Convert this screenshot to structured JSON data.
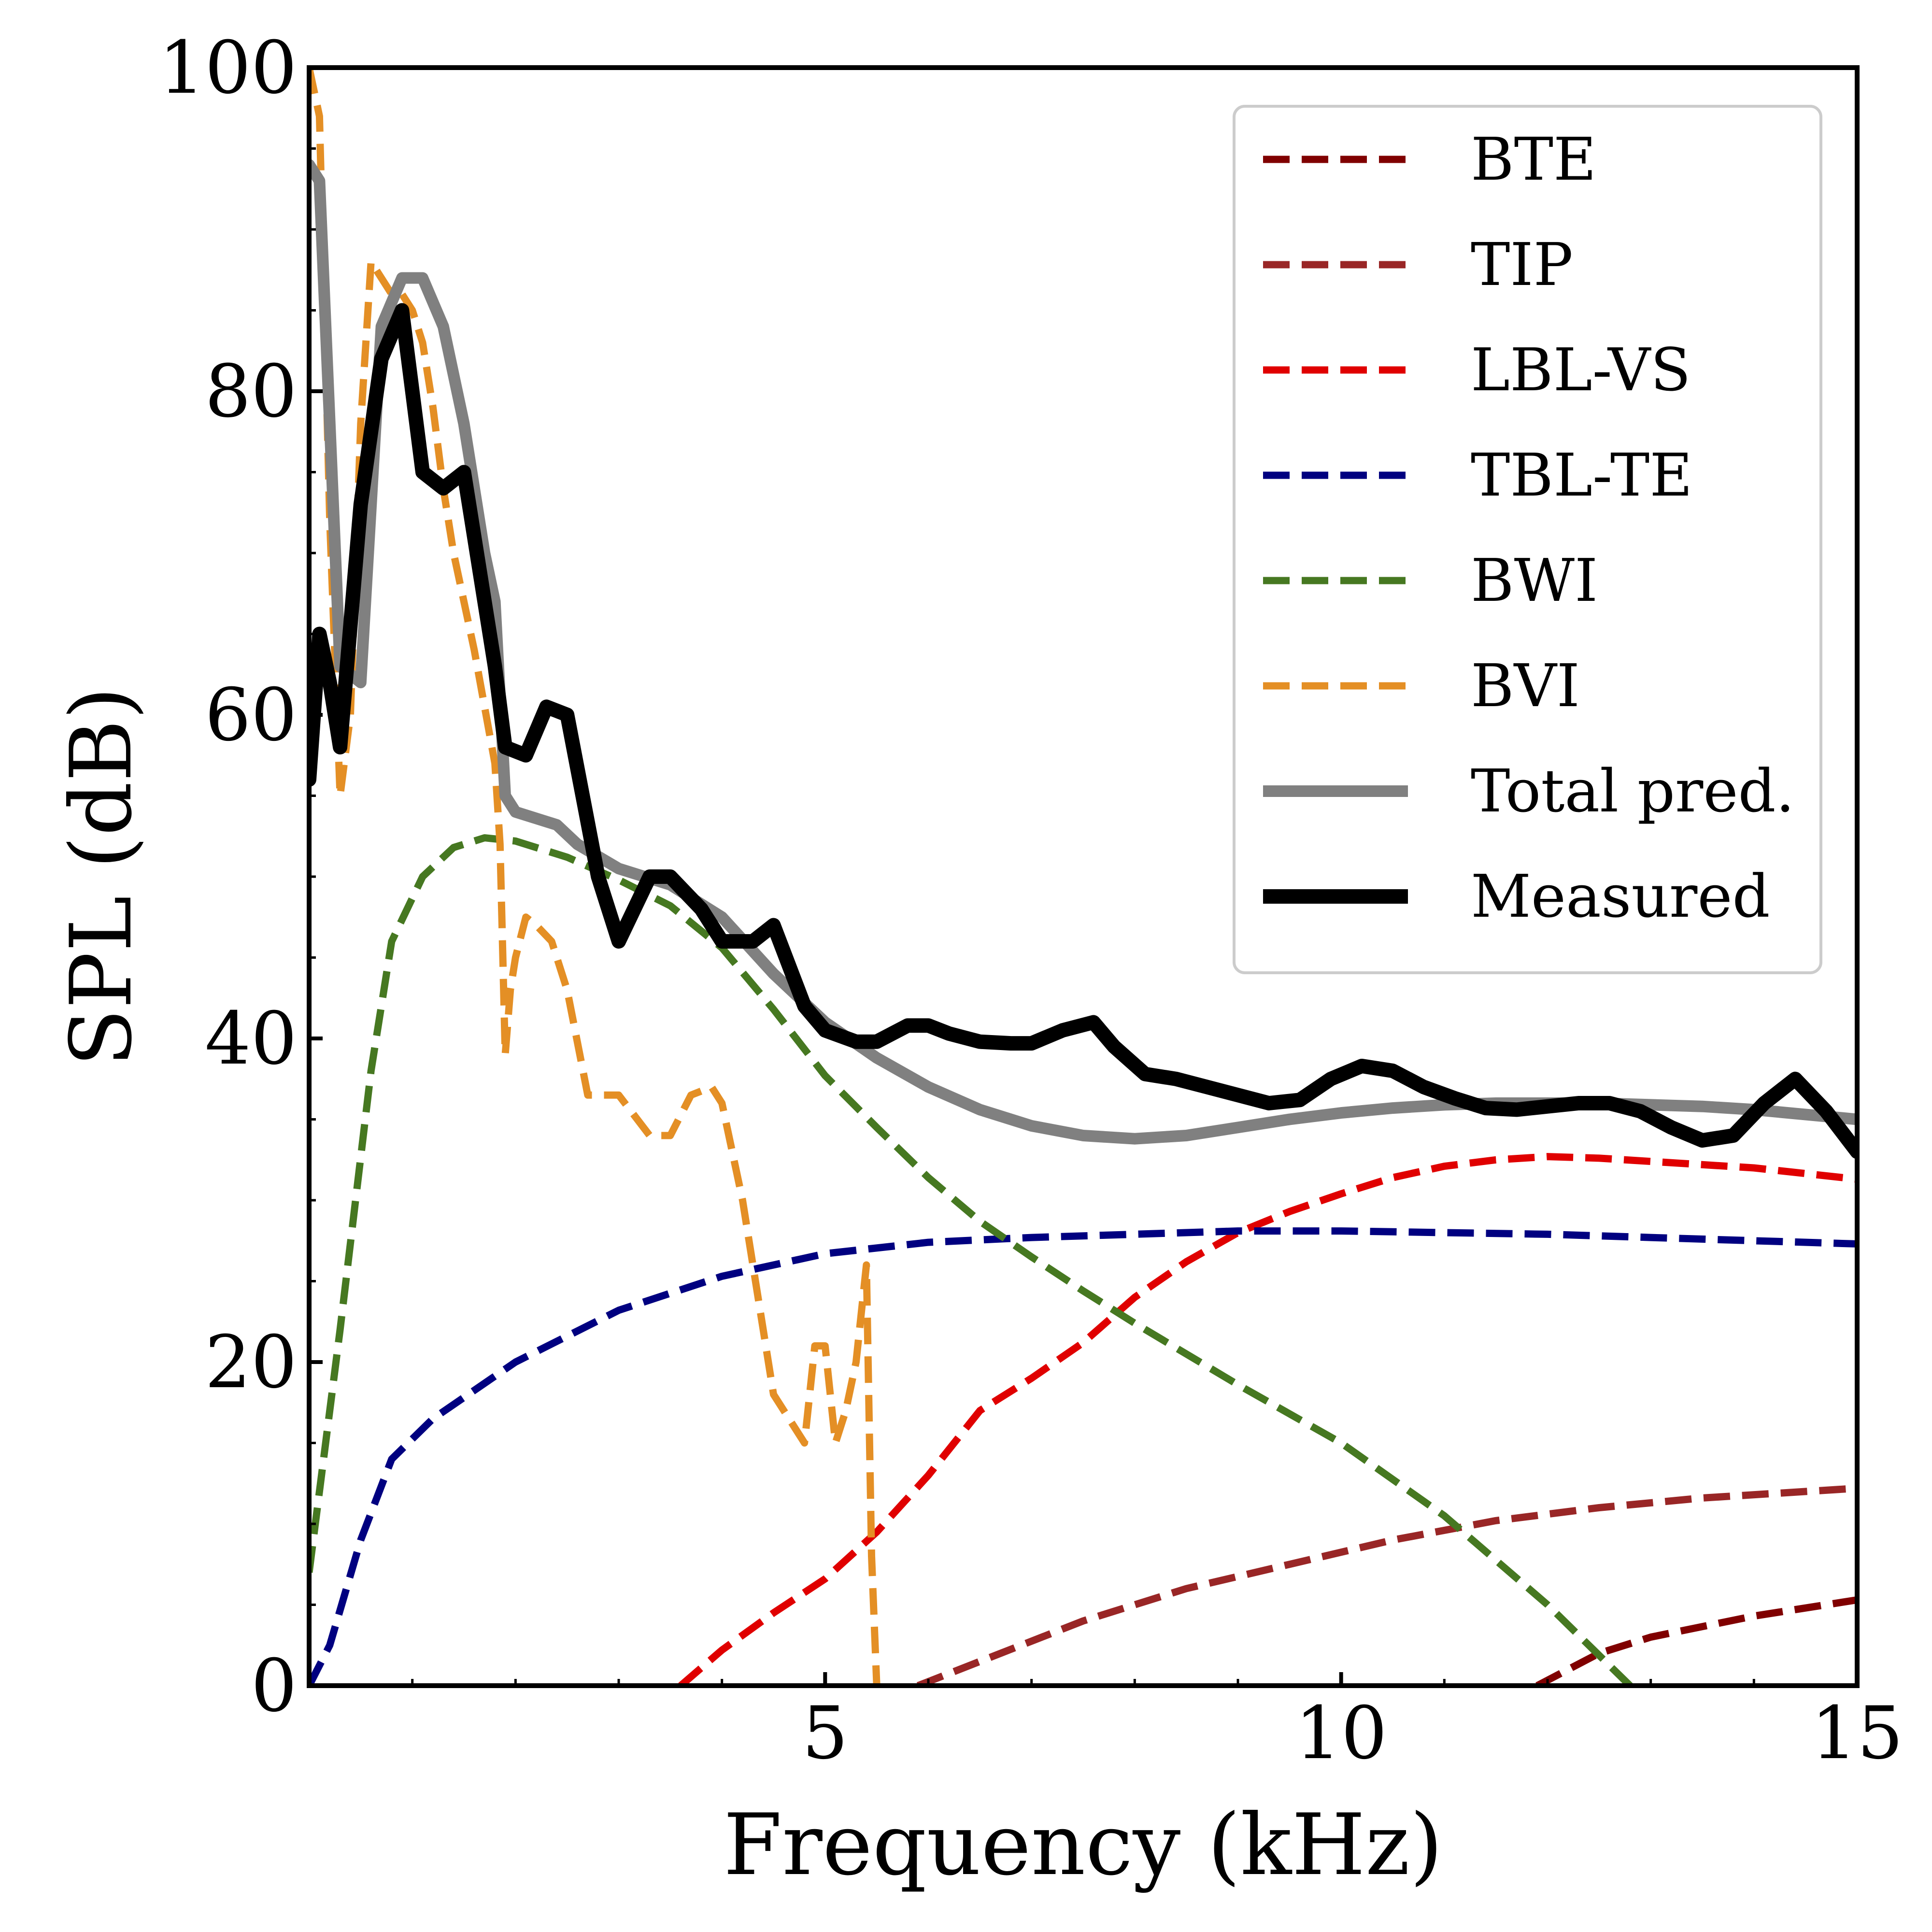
{
  "chart_data": {
    "type": "line",
    "xlabel": "Frequency (kHz)",
    "ylabel": "SPL (dB)",
    "xlim": [
      0,
      15
    ],
    "ylim": [
      0,
      100
    ],
    "xticks": [
      {
        "value": 5,
        "label": "5"
      },
      {
        "value": 10,
        "label": "10"
      },
      {
        "value": 15,
        "label": "15"
      }
    ],
    "yticks": [
      {
        "value": 0,
        "label": "0"
      },
      {
        "value": 20,
        "label": "20"
      },
      {
        "value": 40,
        "label": "40"
      },
      {
        "value": 60,
        "label": "60"
      },
      {
        "value": 80,
        "label": "80"
      },
      {
        "value": 100,
        "label": "100"
      }
    ],
    "legend_position": "top-right",
    "grid": false,
    "series": [
      {
        "name": "BTE",
        "style": "dashed",
        "color": "#800000",
        "width": 15,
        "points": [
          [
            11.9,
            0
          ],
          [
            12.5,
            2
          ],
          [
            13,
            3
          ],
          [
            14,
            4.3
          ],
          [
            15,
            5.3
          ]
        ]
      },
      {
        "name": "TIP",
        "style": "dashed",
        "color": "#992626",
        "width": 15,
        "points": [
          [
            5.9,
            0
          ],
          [
            6.5,
            1.5
          ],
          [
            7.5,
            4
          ],
          [
            8.5,
            6
          ],
          [
            9.5,
            7.5
          ],
          [
            10.5,
            9
          ],
          [
            11.5,
            10.2
          ],
          [
            12.5,
            11
          ],
          [
            13.5,
            11.6
          ],
          [
            15,
            12.2
          ]
        ]
      },
      {
        "name": "LBL-VS",
        "style": "dashed",
        "color": "#e00000",
        "width": 15,
        "points": [
          [
            3.6,
            0
          ],
          [
            4,
            2.2
          ],
          [
            4.5,
            4.5
          ],
          [
            5,
            6.6
          ],
          [
            5.5,
            9.5
          ],
          [
            6,
            13
          ],
          [
            6.5,
            17
          ],
          [
            7,
            19
          ],
          [
            7.5,
            21.2
          ],
          [
            8,
            24
          ],
          [
            8.5,
            26.2
          ],
          [
            9,
            28
          ],
          [
            9.5,
            29.3
          ],
          [
            10,
            30.4
          ],
          [
            10.5,
            31.4
          ],
          [
            11,
            32.1
          ],
          [
            11.5,
            32.5
          ],
          [
            12,
            32.7
          ],
          [
            12.5,
            32.6
          ],
          [
            13,
            32.4
          ],
          [
            14,
            32
          ],
          [
            15,
            31.3
          ]
        ]
      },
      {
        "name": "TBL-TE",
        "style": "dashed",
        "color": "#000080",
        "width": 15,
        "points": [
          [
            0,
            0
          ],
          [
            0.2,
            2.5
          ],
          [
            0.5,
            9
          ],
          [
            0.8,
            14
          ],
          [
            1.2,
            16.5
          ],
          [
            2,
            20
          ],
          [
            3,
            23.2
          ],
          [
            4,
            25.3
          ],
          [
            5,
            26.7
          ],
          [
            6,
            27.4
          ],
          [
            7,
            27.7
          ],
          [
            8,
            27.9
          ],
          [
            9,
            28.1
          ],
          [
            10,
            28.1
          ],
          [
            11,
            28
          ],
          [
            12,
            27.9
          ],
          [
            13,
            27.7
          ],
          [
            14,
            27.5
          ],
          [
            15,
            27.3
          ]
        ]
      },
      {
        "name": "BWI",
        "style": "dashed",
        "color": "#467821",
        "width": 15,
        "points": [
          [
            0,
            7
          ],
          [
            0.3,
            22
          ],
          [
            0.6,
            38
          ],
          [
            0.8,
            46
          ],
          [
            1.1,
            50
          ],
          [
            1.4,
            51.8
          ],
          [
            1.7,
            52.4
          ],
          [
            2,
            52.2
          ],
          [
            2.5,
            51.2
          ],
          [
            3,
            49.8
          ],
          [
            3.5,
            48.2
          ],
          [
            4,
            45.6
          ],
          [
            4.5,
            41.8
          ],
          [
            5,
            37.7
          ],
          [
            5.5,
            34.5
          ],
          [
            6,
            31.4
          ],
          [
            6.5,
            28.7
          ],
          [
            7,
            26.5
          ],
          [
            7.5,
            24.4
          ],
          [
            8,
            22.4
          ],
          [
            9,
            18.6
          ],
          [
            10,
            15
          ],
          [
            11,
            10.5
          ],
          [
            12,
            5
          ],
          [
            12.8,
            0
          ]
        ]
      },
      {
        "name": "BVI",
        "style": "dashed",
        "color": "#e48f25",
        "width": 15,
        "points": [
          [
            0,
            100
          ],
          [
            0.1,
            97
          ],
          [
            0.2,
            72
          ],
          [
            0.3,
            55
          ],
          [
            0.4,
            60
          ],
          [
            0.5,
            78
          ],
          [
            0.6,
            88
          ],
          [
            0.7,
            87
          ],
          [
            0.8,
            86
          ],
          [
            0.9,
            86
          ],
          [
            1,
            85
          ],
          [
            1.1,
            83
          ],
          [
            1.2,
            79
          ],
          [
            1.3,
            74
          ],
          [
            1.4,
            70
          ],
          [
            1.6,
            64
          ],
          [
            1.8,
            57
          ],
          [
            1.85,
            52
          ],
          [
            1.9,
            39
          ],
          [
            1.95,
            43
          ],
          [
            2,
            45
          ],
          [
            2.1,
            47.5
          ],
          [
            2.2,
            47
          ],
          [
            2.35,
            46
          ],
          [
            2.5,
            43
          ],
          [
            2.7,
            36.5
          ],
          [
            3,
            36.5
          ],
          [
            3.3,
            34
          ],
          [
            3.5,
            34
          ],
          [
            3.7,
            36.5
          ],
          [
            3.9,
            37
          ],
          [
            4,
            36
          ],
          [
            4.2,
            30
          ],
          [
            4.5,
            18
          ],
          [
            4.8,
            15
          ],
          [
            4.9,
            21
          ],
          [
            5,
            21
          ],
          [
            5.1,
            15
          ],
          [
            5.2,
            17
          ],
          [
            5.3,
            20
          ],
          [
            5.4,
            26
          ],
          [
            5.45,
            8
          ],
          [
            5.5,
            0
          ]
        ]
      },
      {
        "name": "Total pred.",
        "style": "solid",
        "color": "#808080",
        "width": 24,
        "points": [
          [
            0,
            94
          ],
          [
            0.1,
            93
          ],
          [
            0.3,
            63
          ],
          [
            0.5,
            62
          ],
          [
            0.7,
            84
          ],
          [
            0.9,
            87
          ],
          [
            1.1,
            87
          ],
          [
            1.3,
            84
          ],
          [
            1.5,
            78
          ],
          [
            1.7,
            70
          ],
          [
            1.8,
            67
          ],
          [
            1.9,
            55
          ],
          [
            2,
            54
          ],
          [
            2.4,
            53.2
          ],
          [
            2.6,
            52
          ],
          [
            3,
            50.5
          ],
          [
            3.5,
            49.5
          ],
          [
            4,
            47.5
          ],
          [
            4.5,
            44
          ],
          [
            5,
            41
          ],
          [
            5.5,
            38.8
          ],
          [
            6,
            37
          ],
          [
            6.5,
            35.6
          ],
          [
            7,
            34.6
          ],
          [
            7.5,
            34
          ],
          [
            8,
            33.8
          ],
          [
            8.5,
            34
          ],
          [
            9,
            34.5
          ],
          [
            9.5,
            35
          ],
          [
            10,
            35.4
          ],
          [
            10.5,
            35.7
          ],
          [
            11,
            35.9
          ],
          [
            11.5,
            36
          ],
          [
            12,
            36
          ],
          [
            12.5,
            36
          ],
          [
            13,
            35.9
          ],
          [
            13.5,
            35.8
          ],
          [
            14,
            35.6
          ],
          [
            15,
            35
          ]
        ]
      },
      {
        "name": "Measured",
        "style": "solid",
        "color": "#000000",
        "width": 30,
        "points": [
          [
            0,
            56
          ],
          [
            0.1,
            65
          ],
          [
            0.2,
            62
          ],
          [
            0.3,
            58
          ],
          [
            0.5,
            73
          ],
          [
            0.7,
            82
          ],
          [
            0.9,
            85
          ],
          [
            1.1,
            75
          ],
          [
            1.3,
            74
          ],
          [
            1.5,
            75
          ],
          [
            1.7,
            67
          ],
          [
            1.8,
            63
          ],
          [
            1.9,
            58
          ],
          [
            2.1,
            57.5
          ],
          [
            2.3,
            60.5
          ],
          [
            2.5,
            60
          ],
          [
            2.8,
            50
          ],
          [
            3,
            46
          ],
          [
            3.3,
            50
          ],
          [
            3.5,
            50
          ],
          [
            3.8,
            48
          ],
          [
            4,
            46
          ],
          [
            4.3,
            46
          ],
          [
            4.5,
            47
          ],
          [
            4.8,
            42
          ],
          [
            5,
            40.5
          ],
          [
            5.3,
            39.8
          ],
          [
            5.5,
            39.8
          ],
          [
            5.8,
            40.8
          ],
          [
            6,
            40.8
          ],
          [
            6.2,
            40.3
          ],
          [
            6.5,
            39.8
          ],
          [
            6.8,
            39.7
          ],
          [
            7,
            39.7
          ],
          [
            7.3,
            40.5
          ],
          [
            7.6,
            41
          ],
          [
            7.8,
            39.5
          ],
          [
            8.1,
            37.8
          ],
          [
            8.4,
            37.5
          ],
          [
            8.7,
            37
          ],
          [
            9,
            36.5
          ],
          [
            9.3,
            36
          ],
          [
            9.6,
            36.2
          ],
          [
            9.9,
            37.5
          ],
          [
            10.2,
            38.3
          ],
          [
            10.5,
            38
          ],
          [
            10.8,
            37
          ],
          [
            11.1,
            36.3
          ],
          [
            11.4,
            35.7
          ],
          [
            11.7,
            35.6
          ],
          [
            12,
            35.8
          ],
          [
            12.3,
            36
          ],
          [
            12.6,
            36
          ],
          [
            12.9,
            35.5
          ],
          [
            13.2,
            34.5
          ],
          [
            13.5,
            33.7
          ],
          [
            13.8,
            34
          ],
          [
            14.1,
            36
          ],
          [
            14.4,
            37.5
          ],
          [
            14.7,
            35.5
          ],
          [
            15,
            33
          ]
        ]
      }
    ]
  }
}
